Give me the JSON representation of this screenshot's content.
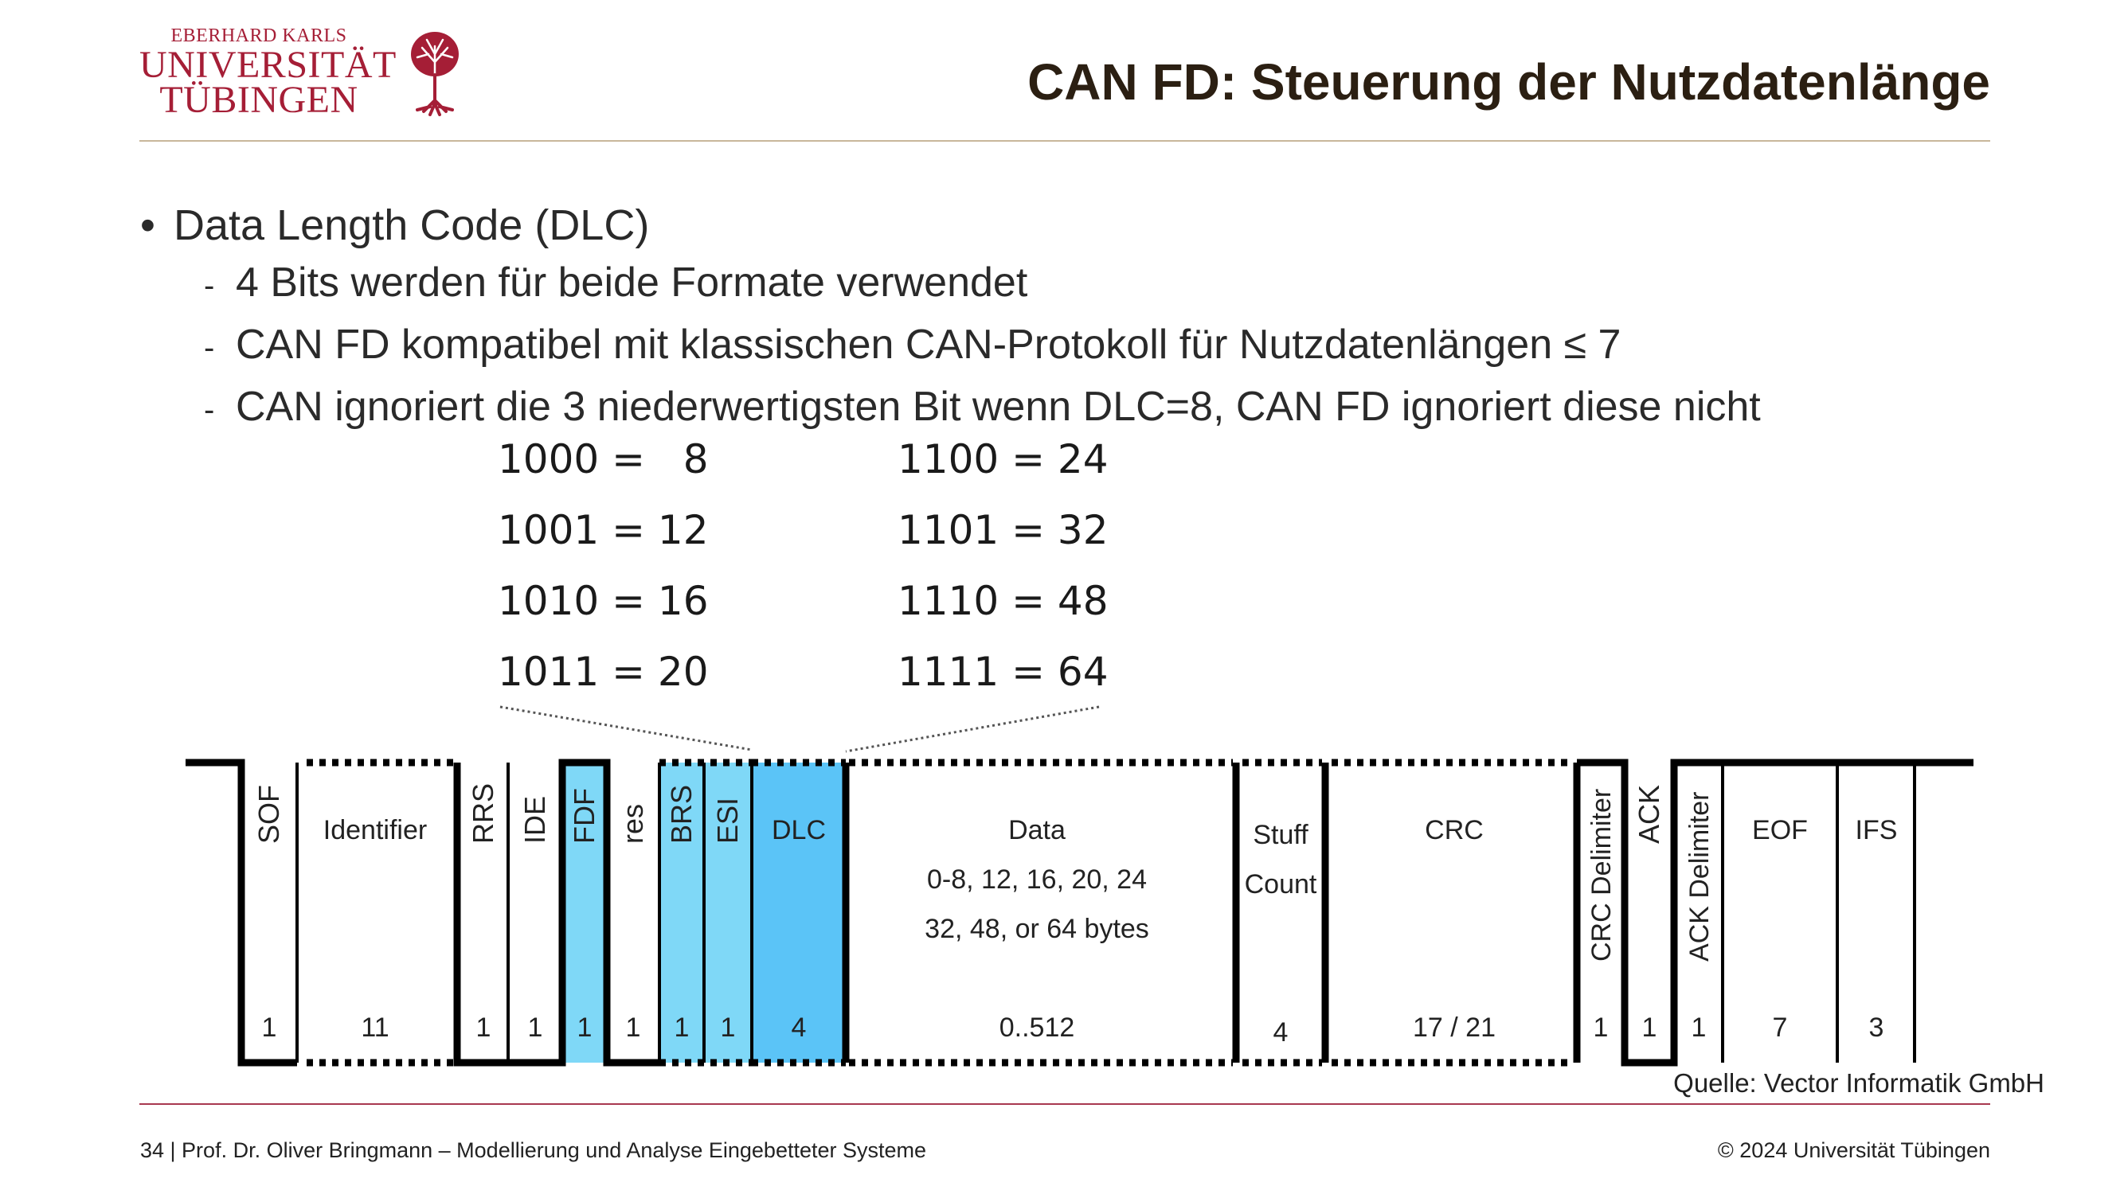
{
  "header": {
    "logo_line1": "EBERHARD KARLS",
    "logo_line2": "UNIVERSITÄT",
    "logo_line3": "TÜBINGEN",
    "title": "CAN FD: Steuerung der Nutzdatenlänge"
  },
  "bullets": {
    "main": "Data Length Code (DLC)",
    "subs": [
      "4 Bits werden für beide Formate verwendet",
      "CAN FD kompatibel mit klassischen CAN-Protokoll für Nutzdatenlängen ≤ 7",
      "CAN ignoriert die 3 niederwertigsten Bit wenn DLC=8, CAN FD ignoriert diese nicht"
    ]
  },
  "codes": [
    [
      "1000 =   8",
      "1100 = 24"
    ],
    [
      "1001 = 12",
      "1101 = 32"
    ],
    [
      "1010 = 16",
      "1110 = 48"
    ],
    [
      "1011 = 20",
      "1111 = 64"
    ]
  ],
  "frame": {
    "fields": [
      {
        "name": "SOF",
        "bits": "1",
        "vertical": true
      },
      {
        "name": "Identifier",
        "bits": "11",
        "vertical": false
      },
      {
        "name": "RRS",
        "bits": "1",
        "vertical": true
      },
      {
        "name": "IDE",
        "bits": "1",
        "vertical": true
      },
      {
        "name": "FDF",
        "bits": "1",
        "vertical": true
      },
      {
        "name": "res",
        "bits": "1",
        "vertical": true
      },
      {
        "name": "BRS",
        "bits": "1",
        "vertical": true
      },
      {
        "name": "ESI",
        "bits": "1",
        "vertical": true
      },
      {
        "name": "DLC",
        "bits": "4",
        "vertical": false
      },
      {
        "name": "Data",
        "bits": "0..512",
        "vertical": false,
        "sub1": "0-8, 12, 16, 20, 24",
        "sub2": "32, 48, or 64 bytes"
      },
      {
        "name": "Stuff",
        "name2": "Count",
        "bits": "4",
        "vertical": false
      },
      {
        "name": "CRC",
        "bits": "17 / 21",
        "vertical": false
      },
      {
        "name": "CRC Delimiter",
        "bits": "1",
        "vertical": true
      },
      {
        "name": "ACK",
        "bits": "1",
        "vertical": true
      },
      {
        "name": "ACK Delimiter",
        "bits": "1",
        "vertical": true
      },
      {
        "name": "EOF",
        "bits": "7",
        "vertical": false
      },
      {
        "name": "IFS",
        "bits": "3",
        "vertical": false
      }
    ],
    "colors": {
      "light": "#7fd8f7",
      "mid": "#63c6f3",
      "dlc": "#5bc4f7"
    }
  },
  "source": "Quelle: Vector Informatik GmbH",
  "footer": {
    "left": "34 | Prof. Dr. Oliver Bringmann – Modellierung und Analyse Eingebetteter Systeme",
    "right": "© 2024 Universität Tübingen"
  }
}
